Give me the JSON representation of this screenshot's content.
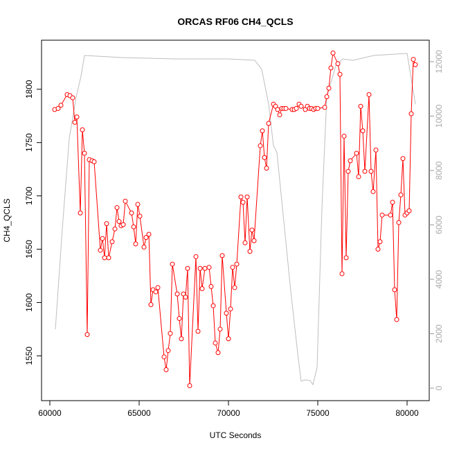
{
  "chart_data": {
    "type": "line",
    "title": "ORCAS RF06 CH4_QCLS",
    "x_label": "UTC Seconds",
    "y_label": "CH4_QCLS",
    "xlim": [
      59535,
      81240
    ],
    "xticks": [
      60000,
      65000,
      70000,
      75000,
      80000
    ],
    "ylim": [
      1508,
      1846
    ],
    "yticks": [
      1550,
      1600,
      1650,
      1700,
      1750,
      1800
    ],
    "y2lim": [
      -459,
      12790
    ],
    "y2ticks": [
      0,
      2000,
      4000,
      6000,
      8000,
      10000,
      12000
    ],
    "series": [
      {
        "color": "#ff0000",
        "marker": "circle",
        "axis": "y",
        "x": [
          60271,
          60465,
          60620,
          60969,
          61124,
          61279,
          61395,
          61512,
          61705,
          61822,
          61938,
          62093,
          62209,
          62364,
          62481,
          62829,
          62946,
          63062,
          63178,
          63295,
          63488,
          63643,
          63760,
          63876,
          63992,
          64109,
          64225,
          64574,
          64690,
          64806,
          64922,
          65039,
          65271,
          65388,
          65543,
          65659,
          65775,
          65930,
          66047,
          66395,
          66512,
          66628,
          66744,
          66860,
          67132,
          67248,
          67364,
          67481,
          67597,
          67713,
          67829,
          68178,
          68295,
          68411,
          68527,
          68682,
          68915,
          69031,
          69147,
          69264,
          69419,
          69535,
          69651,
          69884,
          70000,
          70116,
          70233,
          70349,
          70465,
          70698,
          70814,
          70930,
          71047,
          71202,
          71318,
          71434,
          71783,
          71899,
          72016,
          72132,
          72248,
          72519,
          72636,
          72752,
          72868,
          72984,
          73101,
          73217,
          73566,
          73682,
          73798,
          73953,
          74070,
          74302,
          74419,
          74535,
          74651,
          74767,
          74884,
          75000,
          75388,
          75504,
          75620,
          75736,
          75853,
          76124,
          76240,
          76357,
          76473,
          76589,
          76705,
          76822,
          77171,
          77287,
          77403,
          77519,
          77636,
          77868,
          77984,
          78101,
          78256,
          78372,
          78488,
          78605,
          79070,
          79186,
          79302,
          79419,
          79535,
          79651,
          79767,
          79884,
          80000,
          80116,
          80233,
          80349,
          80465
        ],
        "values": [
          1781,
          1782,
          1785,
          1795,
          1794,
          1792,
          1769,
          1774,
          1684,
          1762,
          1740,
          1570,
          1734,
          1733,
          1732,
          1649,
          1660,
          1642,
          1674,
          1642,
          1657,
          1669,
          1689,
          1676,
          1672,
          1673,
          1695,
          1684,
          1671,
          1655,
          1692,
          1681,
          1652,
          1661,
          1664,
          1598,
          1612,
          1610,
          1614,
          1549,
          1537,
          1555,
          1571,
          1636,
          1608,
          1585,
          1566,
          1608,
          1605,
          1632,
          1522,
          1643,
          1573,
          1632,
          1613,
          1632,
          1633,
          1615,
          1597,
          1562,
          1553,
          1575,
          1644,
          1590,
          1566,
          1594,
          1633,
          1614,
          1636,
          1699,
          1694,
          1656,
          1699,
          1648,
          1668,
          1658,
          1747,
          1761,
          1736,
          1726,
          1768,
          1786,
          1784,
          1781,
          1776,
          1782,
          1782,
          1782,
          1781,
          1781,
          1782,
          1786,
          1784,
          1781,
          1784,
          1782,
          1782,
          1781,
          1782,
          1782,
          1783,
          1793,
          1801,
          1820,
          1834,
          1824,
          1814,
          1627,
          1756,
          1642,
          1723,
          1733,
          1740,
          1718,
          1784,
          1761,
          1723,
          1795,
          1723,
          1704,
          1743,
          1650,
          1657,
          1682,
          1682,
          1694,
          1612,
          1584,
          1675,
          1701,
          1735,
          1682,
          1684,
          1686,
          1777,
          1828,
          1823
        ]
      },
      {
        "color": "#bebebe",
        "axis": "y2",
        "x": [
          60310,
          60698,
          61085,
          61473,
          61744,
          61938,
          64000,
          67000,
          70000,
          71473,
          71860,
          72248,
          72519,
          72713,
          72907,
          73101,
          73488,
          73876,
          74070,
          74260,
          74570,
          74729,
          74961,
          75233,
          75504,
          76008,
          76395,
          76977,
          78140,
          80000,
          80465
        ],
        "values": [
          2166,
          5860,
          9172,
          10701,
          11465,
          12229,
          12153,
          12102,
          12102,
          12051,
          11720,
          10446,
          8917,
          8662,
          7389,
          6115,
          3567,
          1274,
          255,
          306,
          280,
          127,
          764,
          6624,
          10701,
          11847,
          12102,
          12051,
          12229,
          12306,
          10446
        ]
      }
    ]
  }
}
